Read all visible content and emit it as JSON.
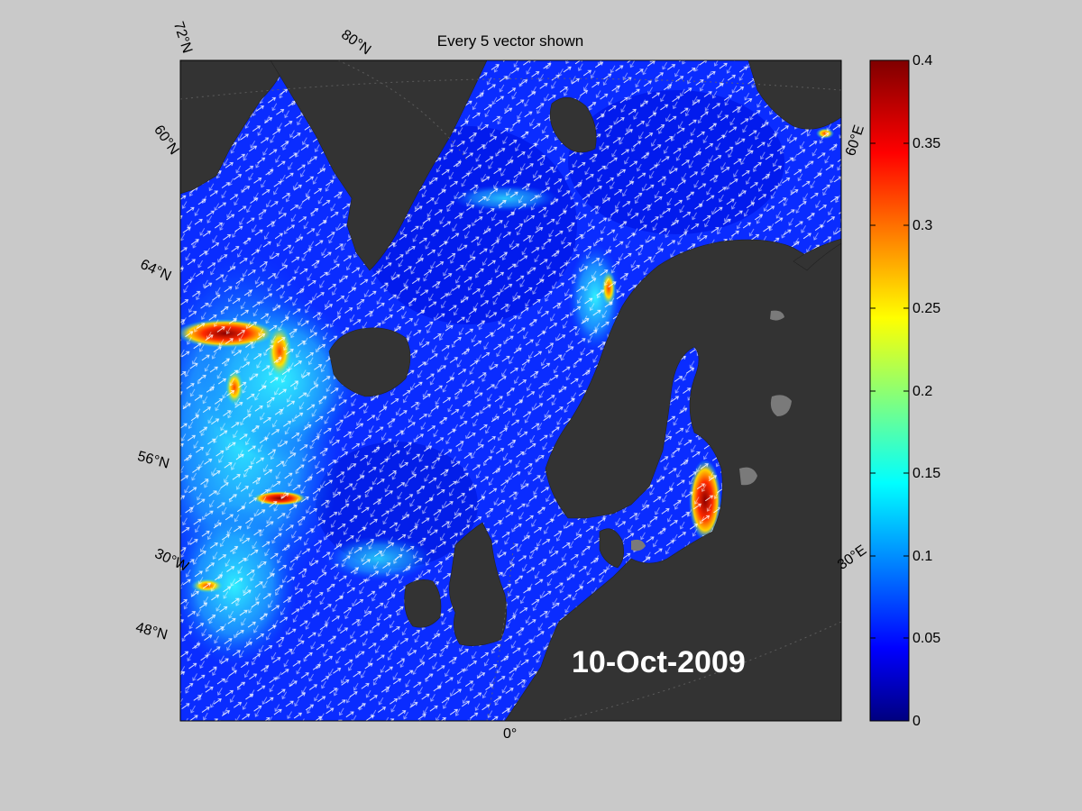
{
  "title": "Every 5 vector shown",
  "date_label": "10-Oct-2009",
  "map": {
    "latitude_labels": [
      "72°N",
      "60°N",
      "64°N",
      "56°N",
      "48°N"
    ],
    "longitude_labels": [
      "80°N",
      "30°W",
      "0°",
      "30°E",
      "60°E"
    ],
    "land_color": "#333333",
    "lake_color": "#7a7a7a",
    "background_color": "#c9c9c9"
  },
  "colorbar": {
    "colormap": "jet",
    "range": [
      0,
      0.4
    ],
    "ticks": [
      "0.4",
      "0.35",
      "0.3",
      "0.25",
      "0.2",
      "0.15",
      "0.1",
      "0.05",
      "0"
    ]
  }
}
